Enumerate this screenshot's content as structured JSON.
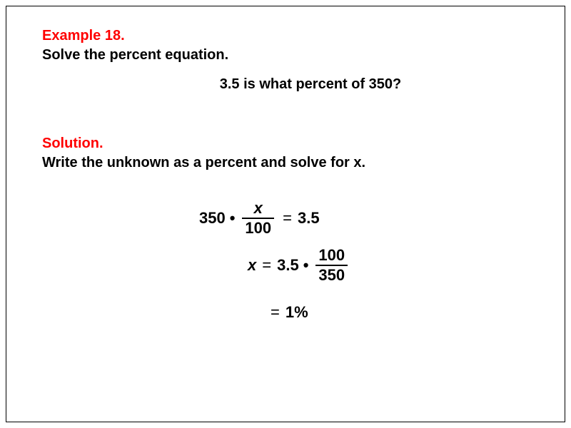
{
  "colors": {
    "heading": "#ff0000",
    "text": "#000000",
    "border": "#000000",
    "background": "#ffffff"
  },
  "typography": {
    "family": "Arial, Helvetica, sans-serif",
    "heading_size_pt": 15,
    "body_size_pt": 15,
    "math_size_pt": 16,
    "weight": "bold"
  },
  "example": {
    "label": "Example 18.",
    "prompt": "Solve the percent equation.",
    "question": "3.5 is what percent of 350?"
  },
  "solution": {
    "label": "Solution.",
    "instruction": "Write the unknown as a percent and solve for x."
  },
  "equations": {
    "line1": {
      "lhs_coeff": "350",
      "op": "•",
      "frac_num": "x",
      "frac_den": "100",
      "eq": "=",
      "rhs": "3.5"
    },
    "line2": {
      "lhs": "x",
      "eq": "=",
      "rhs_coeff": "3.5",
      "op": "•",
      "frac_num": "100",
      "frac_den": "350"
    },
    "line3": {
      "eq": "=",
      "result": "1%"
    }
  }
}
